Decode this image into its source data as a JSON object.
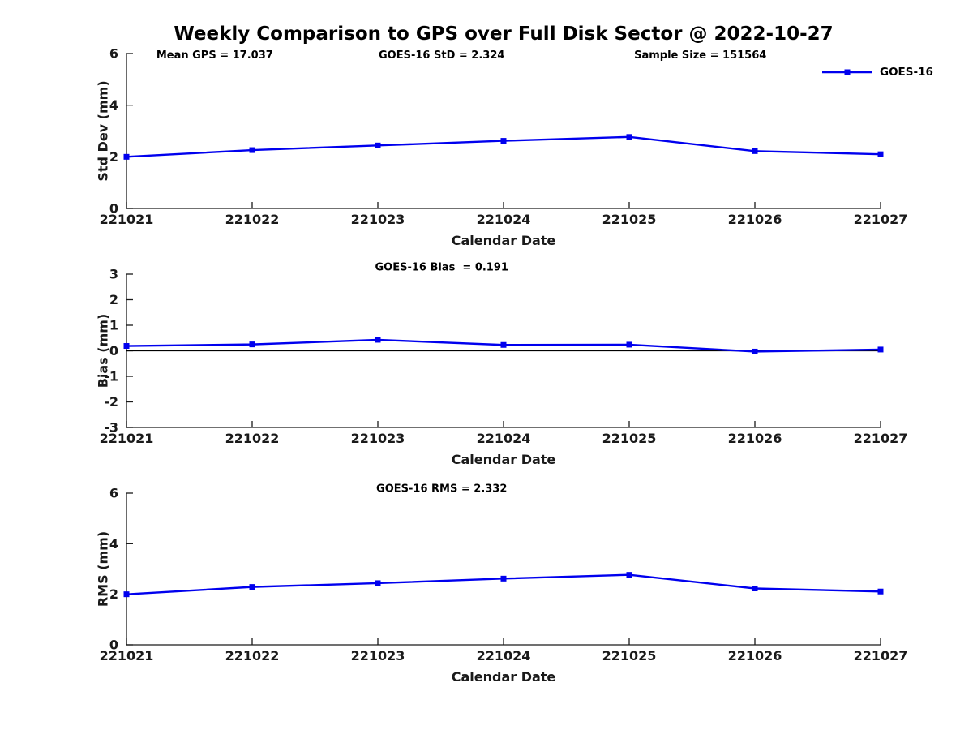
{
  "title": "Weekly Comparison to GPS over Full Disk Sector @ 2022-10-27",
  "legend": {
    "label": "GOES-16",
    "color": "#0000ee"
  },
  "text_colors": {
    "title": "#000000",
    "axis": "#1a1a1a",
    "annotation": "#000000",
    "zero_line": "#000000"
  },
  "chart_data": [
    {
      "type": "line",
      "ylabel": "Std Dev (mm)",
      "xlabel": "Calendar Date",
      "ylim": [
        0,
        6
      ],
      "yticks": [
        0,
        2,
        4,
        6
      ],
      "categories": [
        "221021",
        "221022",
        "221023",
        "221024",
        "221025",
        "221026",
        "221027"
      ],
      "grid": false,
      "zero_line": false,
      "legend_position": "top-right-outside",
      "series": [
        {
          "name": "GOES-16",
          "color": "#0000ee",
          "marker": "square",
          "values": [
            2.0,
            2.26,
            2.44,
            2.62,
            2.77,
            2.22,
            2.1
          ]
        }
      ],
      "annotations": [
        {
          "text": "Mean GPS = 17.037",
          "xfrac": 0.117
        },
        {
          "text": "GOES-16 StD = 2.324",
          "xfrac": 0.418
        },
        {
          "text": "Sample Size = 151564",
          "xfrac": 0.761
        }
      ]
    },
    {
      "type": "line",
      "ylabel": "Bias (mm)",
      "xlabel": "Calendar Date",
      "ylim": [
        -3,
        3
      ],
      "yticks": [
        -3,
        -2,
        -1,
        0,
        1,
        2,
        3
      ],
      "categories": [
        "221021",
        "221022",
        "221023",
        "221024",
        "221025",
        "221026",
        "221027"
      ],
      "grid": false,
      "zero_line": true,
      "series": [
        {
          "name": "GOES-16",
          "color": "#0000ee",
          "marker": "square",
          "values": [
            0.19,
            0.25,
            0.43,
            0.23,
            0.24,
            -0.03,
            0.05
          ]
        }
      ],
      "annotations": [
        {
          "text": "GOES-16 Bias  = 0.191",
          "xfrac": 0.418
        }
      ]
    },
    {
      "type": "line",
      "ylabel": "RMS (mm)",
      "xlabel": "Calendar Date",
      "ylim": [
        0,
        6
      ],
      "yticks": [
        0,
        2,
        4,
        6
      ],
      "categories": [
        "221021",
        "221022",
        "221023",
        "221024",
        "221025",
        "221026",
        "221027"
      ],
      "grid": false,
      "zero_line": false,
      "series": [
        {
          "name": "GOES-16",
          "color": "#0000ee",
          "marker": "square",
          "values": [
            2.0,
            2.29,
            2.44,
            2.62,
            2.77,
            2.23,
            2.11
          ]
        }
      ],
      "annotations": [
        {
          "text": "GOES-16 RMS = 2.332",
          "xfrac": 0.418
        }
      ]
    }
  ]
}
